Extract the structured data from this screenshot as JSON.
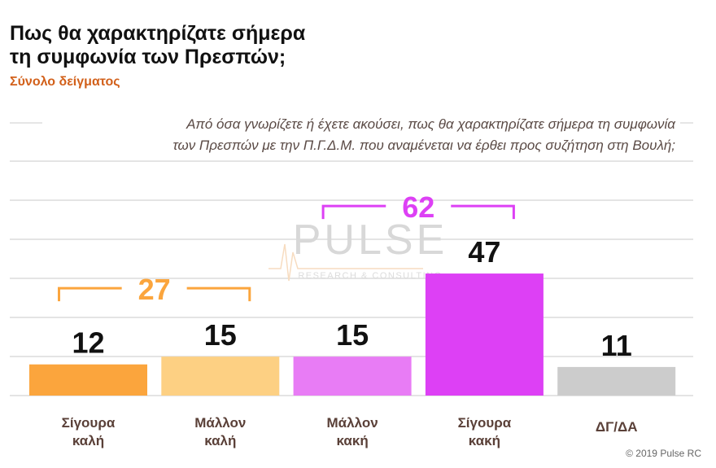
{
  "title_lines": [
    "Πως θα χαρακτηρίζατε σήμερα",
    "τη συμφωνία των Πρεσπών;"
  ],
  "subtitle": "Σύνολο δείγματος",
  "question_lines": [
    "Από όσα γνωρίζετε ή έχετε ακούσει, πως θα χαρακτηρίζατε σήμερα τη συμφωνία",
    "των Πρεσπών με την Π.Γ.Δ.Μ. που αναμένεται να έρθει προς συζήτηση στη Βουλή;"
  ],
  "watermark": {
    "brand": "PULSE",
    "tagline": "RESEARCH & CONSULTING"
  },
  "copyright": "© 2019 Pulse RC",
  "chart_data": {
    "type": "bar",
    "categories": [
      [
        "Σίγουρα",
        "καλή"
      ],
      [
        "Μάλλον",
        "καλή"
      ],
      [
        "Μάλλον",
        "κακή"
      ],
      [
        "Σίγουρα",
        "κακή"
      ],
      [
        "ΔΓ/ΔΑ"
      ]
    ],
    "values": [
      12,
      15,
      15,
      47,
      11
    ],
    "colors": [
      "#fba53d",
      "#fdd083",
      "#e87cf5",
      "#dd40f5",
      "#cccccc"
    ],
    "groups": [
      {
        "label": "27",
        "from": 0,
        "to": 1,
        "color": "#fba53d"
      },
      {
        "label": "62",
        "from": 2,
        "to": 3,
        "color": "#dd40f5"
      }
    ],
    "grid": true
  }
}
